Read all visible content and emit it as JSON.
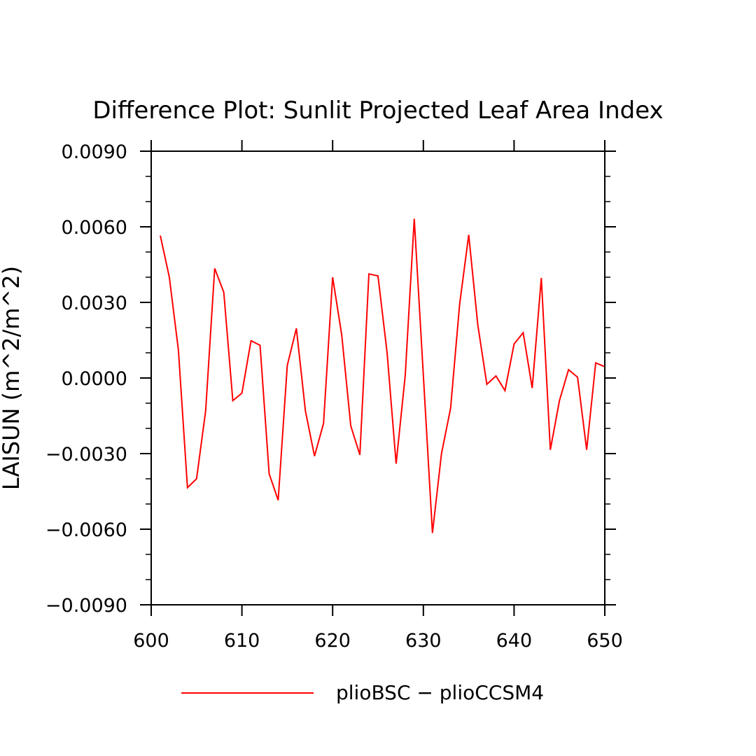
{
  "chart_data": {
    "type": "line",
    "title": "Difference Plot: Sunlit Projected Leaf Area Index",
    "xlabel": "",
    "ylabel": "LAISUN   (m^2/m^2)",
    "xlim": [
      600,
      650
    ],
    "ylim": [
      -0.009,
      0.009
    ],
    "x_ticks": [
      600,
      610,
      620,
      630,
      640,
      650
    ],
    "x_tick_labels": [
      "600",
      "610",
      "620",
      "630",
      "640",
      "650"
    ],
    "y_ticks": [
      -0.009,
      -0.006,
      -0.003,
      0.0,
      0.003,
      0.006,
      0.009
    ],
    "y_tick_labels": [
      "−0.0090",
      "−0.0060",
      "−0.0030",
      "0.0000",
      "0.0030",
      "0.0060",
      "0.0090"
    ],
    "grid": false,
    "legend_position": "bottom",
    "series": [
      {
        "name": "plioBSC − plioCCSM4",
        "color": "#ff0000",
        "x": [
          601,
          602,
          603,
          604,
          605,
          606,
          607,
          608,
          609,
          610,
          611,
          612,
          613,
          614,
          615,
          616,
          617,
          618,
          619,
          620,
          621,
          622,
          623,
          624,
          625,
          626,
          627,
          628,
          629,
          630,
          631,
          632,
          633,
          634,
          635,
          636,
          637,
          638,
          639,
          640,
          641,
          642,
          643,
          644,
          645,
          646,
          647,
          648,
          649,
          650
        ],
        "values": [
          0.00565,
          0.004,
          0.0011,
          -0.00435,
          -0.004,
          -0.0013,
          0.00435,
          0.0034,
          -0.0009,
          -0.0006,
          0.00148,
          0.0013,
          -0.0038,
          -0.00485,
          0.0005,
          0.00197,
          -0.0013,
          -0.0031,
          -0.0018,
          0.004,
          0.0017,
          -0.0019,
          -0.00305,
          0.00413,
          0.00405,
          0.001,
          -0.0034,
          0.0001,
          0.00632,
          0.0001,
          -0.00615,
          -0.003,
          -0.0012,
          0.00292,
          0.00568,
          0.0021,
          -0.00025,
          8e-05,
          -0.0005,
          0.00135,
          0.0018,
          -0.0004,
          0.00397,
          -0.00285,
          -0.0009,
          0.00033,
          3e-05,
          -0.00285,
          0.0006,
          0.00045
        ]
      }
    ]
  }
}
